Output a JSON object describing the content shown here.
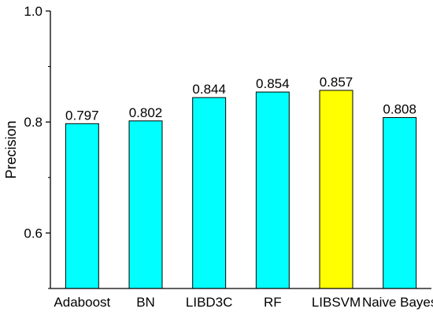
{
  "chart_data": {
    "type": "bar",
    "title": "",
    "xlabel": "",
    "ylabel": "Precision",
    "ylim": [
      0.6,
      1.0
    ],
    "axis_range": [
      0.5,
      1.0
    ],
    "yticks": [
      "0.6",
      "0.8",
      "1.0"
    ],
    "grid": false,
    "categories": [
      "Adaboost",
      "BN",
      "LIBD3C",
      "RF",
      "LIBSVM",
      "Naive Bayes"
    ],
    "values": [
      0.797,
      0.802,
      0.844,
      0.854,
      0.857,
      0.808
    ],
    "value_labels": [
      "0.797",
      "0.802",
      "0.844",
      "0.854",
      "0.857",
      "0.808"
    ],
    "colors": {
      "default_bar": "#00FFFF",
      "highlight_bar": "#FFFF00",
      "bar_outline": "#000000"
    },
    "highlight_category": "LIBSVM"
  }
}
